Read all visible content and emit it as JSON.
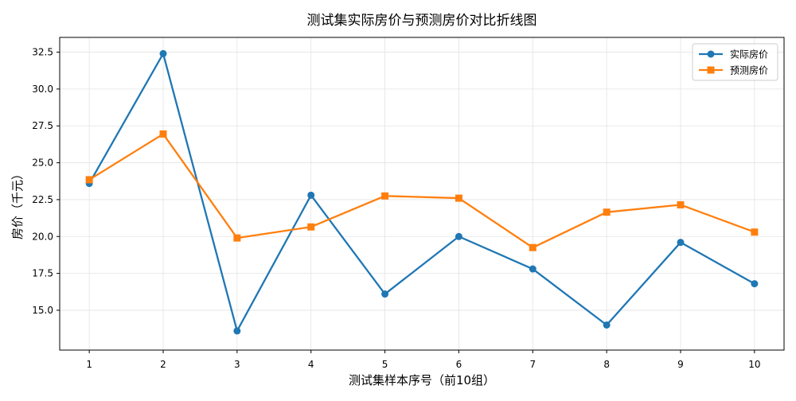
{
  "chart_data": {
    "type": "line",
    "title": "测试集实际房价与预测房价对比折线图",
    "xlabel": "测试集样本序号（前10组）",
    "ylabel": "房价（千元）",
    "x": [
      1,
      2,
      3,
      4,
      5,
      6,
      7,
      8,
      9,
      10
    ],
    "xlim": [
      0.6,
      10.4
    ],
    "ylim": [
      12.3,
      33.5
    ],
    "yticks": [
      15.0,
      17.5,
      20.0,
      22.5,
      25.0,
      27.5,
      30.0,
      32.5
    ],
    "grid": true,
    "legend_position": "top-right",
    "series": [
      {
        "name": "实际房价",
        "color": "#1f77b4",
        "marker": "circle",
        "values": [
          23.6,
          32.4,
          13.6,
          22.8,
          16.1,
          20.0,
          17.8,
          14.0,
          19.6,
          16.8
        ]
      },
      {
        "name": "预测房价",
        "color": "#ff7f0e",
        "marker": "square",
        "values": [
          23.85,
          26.95,
          19.9,
          20.65,
          22.75,
          22.6,
          19.25,
          21.65,
          22.15,
          20.3
        ]
      }
    ]
  }
}
